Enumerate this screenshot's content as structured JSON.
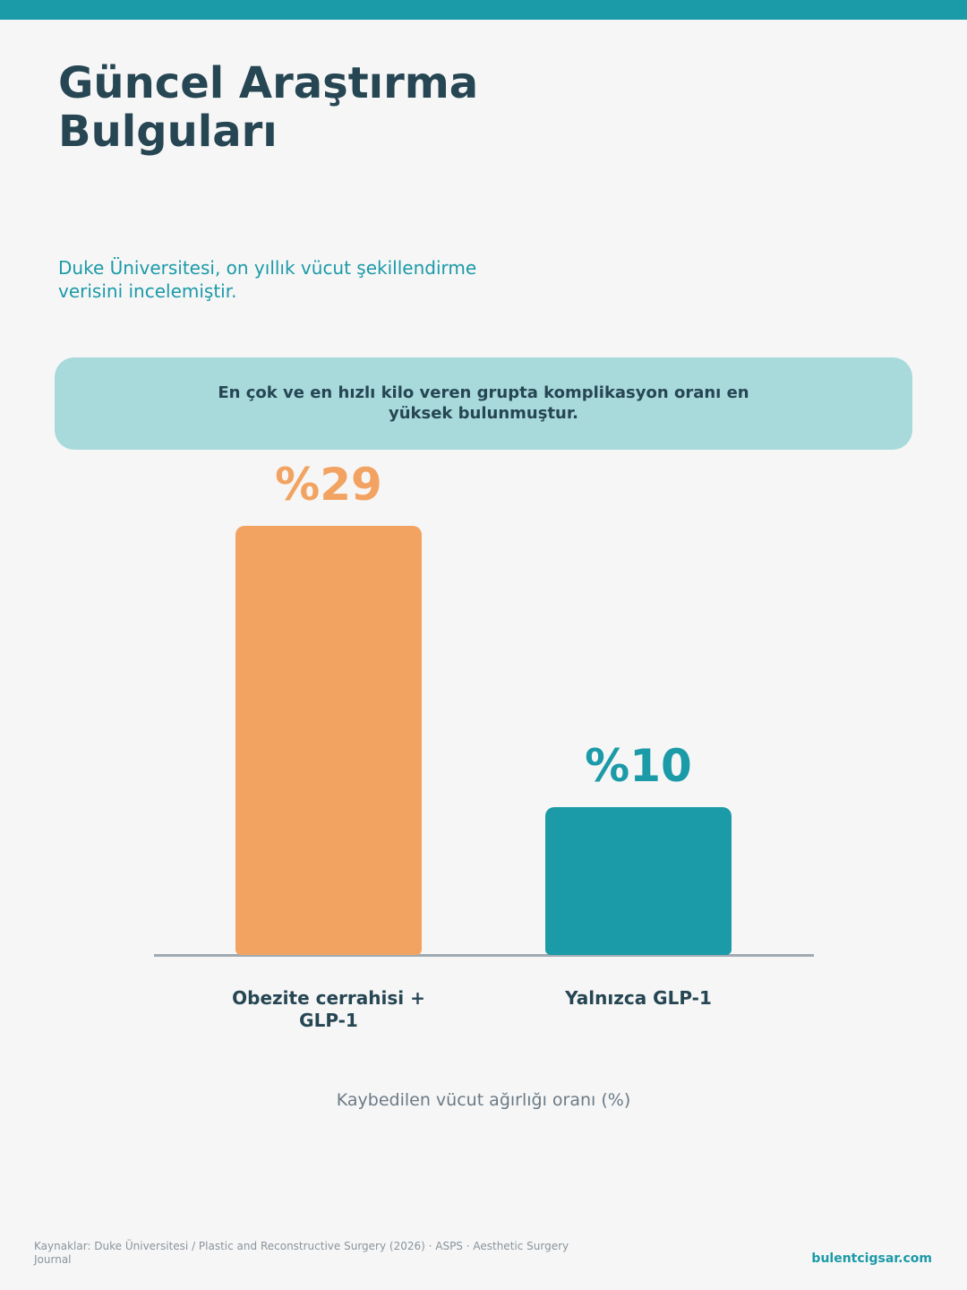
{
  "chart_data": {
    "type": "bar",
    "title": "Güncel Araştırma Bulguları",
    "subtitle": "Duke Üniversitesi, on yıllık vücut şekillendirme verisini incelemiştir.",
    "callout": "En çok ve en hızlı kilo veren grupta komplikasyon oranı en yüksek bulunmuştur.",
    "categories": [
      "Obezite cerrahisi + GLP-1",
      "Yalnızca GLP-1"
    ],
    "values": [
      29,
      10
    ],
    "value_labels": [
      "%29",
      "%10"
    ],
    "colors": [
      "#f2a361",
      "#1b9aa8"
    ],
    "x_label": "Kaybedilen vücut ağırlığı oranı (%)"
  },
  "footer": {
    "sources": "Kaynaklar: Duke Üniversitesi / Plastic and Reconstructive Surgery (2026) · ASPS · Aesthetic Surgery Journal",
    "website": "bulentcigsar.com"
  }
}
